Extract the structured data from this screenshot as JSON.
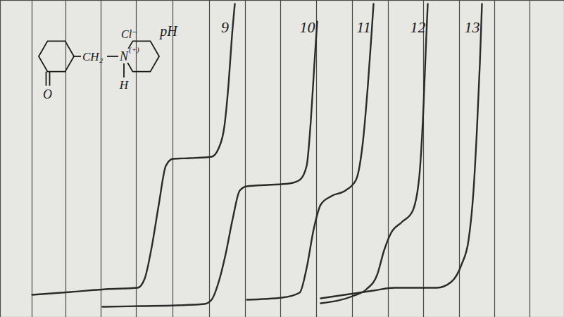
{
  "chart_data": {
    "type": "line",
    "annotations": [
      "pH"
    ],
    "structure_labels": {
      "counter_ion": "Cl⁻",
      "linker": "CH₂",
      "nitrogen": "N",
      "charge": "(+)",
      "hydrogen": "H",
      "oxygen": "O"
    },
    "xlim": [
      0,
      801
    ],
    "ylim": [
      0,
      450
    ],
    "xticks": [
      45,
      93,
      143,
      193,
      245,
      297,
      348,
      398,
      449,
      500,
      551,
      601,
      652,
      702,
      752
    ],
    "grid": "x",
    "tick_labels": false,
    "series": [
      {
        "name": "9",
        "color": "#2a2a2a",
        "line_style": "solid",
        "x": [
          45,
          100,
          150,
          195,
          205,
          215,
          225,
          235,
          245,
          270,
          300,
          310,
          318,
          324,
          329,
          333
        ],
        "values": [
          32,
          36,
          40,
          42,
          55,
          100,
          160,
          215,
          225,
          226,
          228,
          240,
          270,
          330,
          400,
          445
        ]
      },
      {
        "name": "10",
        "color": "#2a2a2a",
        "line_style": "solid",
        "x": [
          145,
          200,
          250,
          290,
          300,
          310,
          320,
          330,
          340,
          350,
          380,
          410,
          425,
          435,
          441,
          446,
          450
        ],
        "values": [
          15,
          16,
          17,
          19,
          25,
          50,
          90,
          140,
          180,
          186,
          188,
          190,
          195,
          215,
          280,
          360,
          420
        ]
      },
      {
        "name": "11",
        "color": "#2a2a2a",
        "line_style": "solid",
        "x": [
          350,
          400,
          425,
          435,
          445,
          455,
          470,
          490,
          505,
          515,
          522,
          527,
          530
        ],
        "values": [
          25,
          28,
          35,
          70,
          125,
          160,
          172,
          180,
          195,
          250,
          330,
          400,
          445
        ]
      },
      {
        "name": "12",
        "color": "#2a2a2a",
        "line_style": "solid",
        "x": [
          455,
          500,
          520,
          535,
          545,
          555,
          570,
          585,
          595,
          601,
          605,
          607
        ],
        "values": [
          20,
          30,
          40,
          60,
          95,
          120,
          135,
          150,
          200,
          300,
          400,
          445
        ]
      },
      {
        "name": "13",
        "color": "#2a2a2a",
        "line_style": "solid",
        "x": [
          455,
          530,
          560,
          620,
          640,
          655,
          665,
          672,
          677,
          681,
          684
        ],
        "values": [
          27,
          38,
          42,
          42,
          50,
          75,
          110,
          180,
          270,
          360,
          445
        ]
      }
    ]
  }
}
